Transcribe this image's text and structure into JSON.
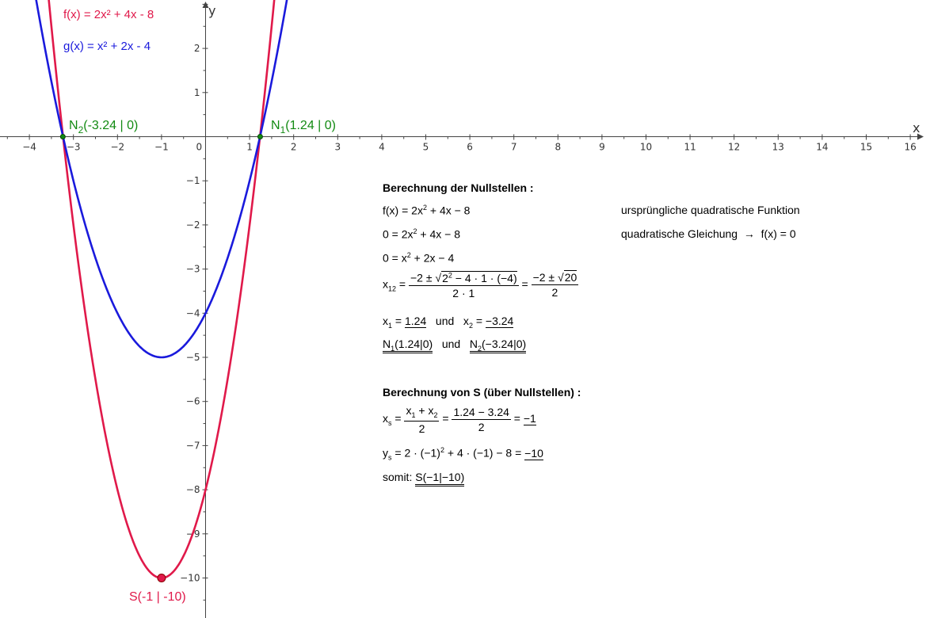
{
  "chart_data": {
    "type": "line",
    "xlabel": "x",
    "ylabel": "y",
    "xlim": [
      -4.6,
      16.4
    ],
    "ylim": [
      -10.8,
      3.1
    ],
    "x_ticks": [
      -4,
      -3,
      -2,
      -1,
      0,
      1,
      2,
      3,
      4,
      5,
      6,
      7,
      8,
      9,
      10,
      11,
      12,
      13,
      14,
      15,
      16
    ],
    "x_tick_labels": [
      "−4",
      "−3",
      "−2",
      "−1",
      "0",
      "1",
      "2",
      "3",
      "4",
      "5",
      "6",
      "7",
      "8",
      "9",
      "10",
      "11",
      "12",
      "13",
      "14",
      "15",
      "16"
    ],
    "y_ticks": [
      2,
      1,
      -1,
      -2,
      -3,
      -4,
      -5,
      -6,
      -7,
      -8,
      -9,
      -10
    ],
    "y_tick_labels": [
      "2",
      "1",
      "−1",
      "−2",
      "−3",
      "−4",
      "−5",
      "−6",
      "−7",
      "−8",
      "−9",
      "−10"
    ],
    "series": [
      {
        "name": "f(x) = 2x² + 4x - 8",
        "coefficients": [
          2,
          4,
          -8
        ],
        "color": "#e0194a"
      },
      {
        "name": "g(x) = x² + 2x - 4",
        "coefficients": [
          1,
          2,
          -4
        ],
        "color": "#1a1adc"
      }
    ],
    "points": [
      {
        "label": "N1(1.24 | 0)",
        "label_main": "N",
        "label_sub": "1",
        "label_rest": "(1.24 | 0)",
        "x": 1.24,
        "y": 0,
        "color": "#128a12"
      },
      {
        "label": "N2(-3.24 | 0)",
        "label_main": "N",
        "label_sub": "2",
        "label_rest": "(-3.24 | 0)",
        "x": -3.24,
        "y": 0,
        "color": "#128a12"
      },
      {
        "label": "S(-1 | -10)",
        "x": -1,
        "y": -10,
        "color": "#e0194a"
      }
    ]
  },
  "calculation": {
    "heading1": "Berechnung der Nullstellen :",
    "note1": "ursprüngliche quadratische Funktion",
    "note2": "quadratische Gleichung",
    "heading2": "Berechnung von S (über Nullstellen) :",
    "somit": "somit:",
    "und": "und"
  }
}
